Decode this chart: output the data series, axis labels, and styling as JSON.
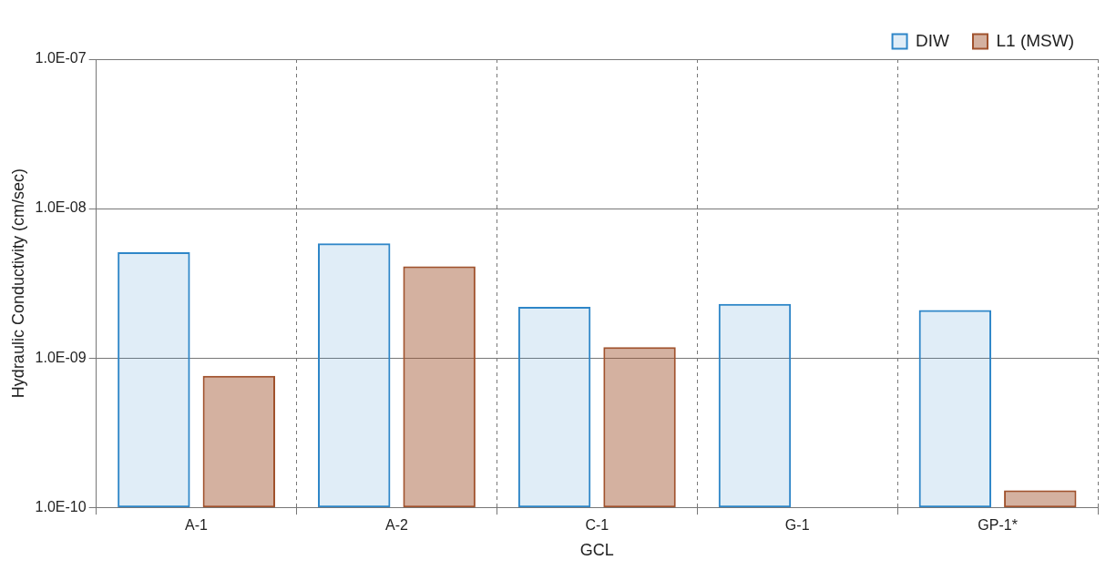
{
  "chart_data": {
    "type": "bar",
    "xlabel": "GCL",
    "ylabel": "Hydraulic Conductivity (cm/sec)",
    "categories": [
      "A-1",
      "A-2",
      "C-1",
      "G-1",
      "GP-1*"
    ],
    "series": [
      {
        "name": "DIW",
        "color": "#2e86c8",
        "values": [
          5.1e-09,
          5.85e-09,
          2.2e-09,
          2.3e-09,
          2.09e-09
        ]
      },
      {
        "name": "L1 (MSW)",
        "color": "#a0522d",
        "values": [
          7.6e-10,
          4.1e-09,
          1.18e-09,
          null,
          1.3e-10
        ]
      }
    ],
    "log": "y",
    "ylim": [
      1e-10,
      1e-07
    ],
    "yticks": [
      {
        "value": 1e-10,
        "label": "1.0E-10"
      },
      {
        "value": 1e-09,
        "label": "1.0E-09"
      },
      {
        "value": 1e-08,
        "label": "1.0E-08"
      },
      {
        "value": 1e-07,
        "label": "1.0E-07"
      }
    ],
    "grid": true,
    "legend": "top right"
  }
}
